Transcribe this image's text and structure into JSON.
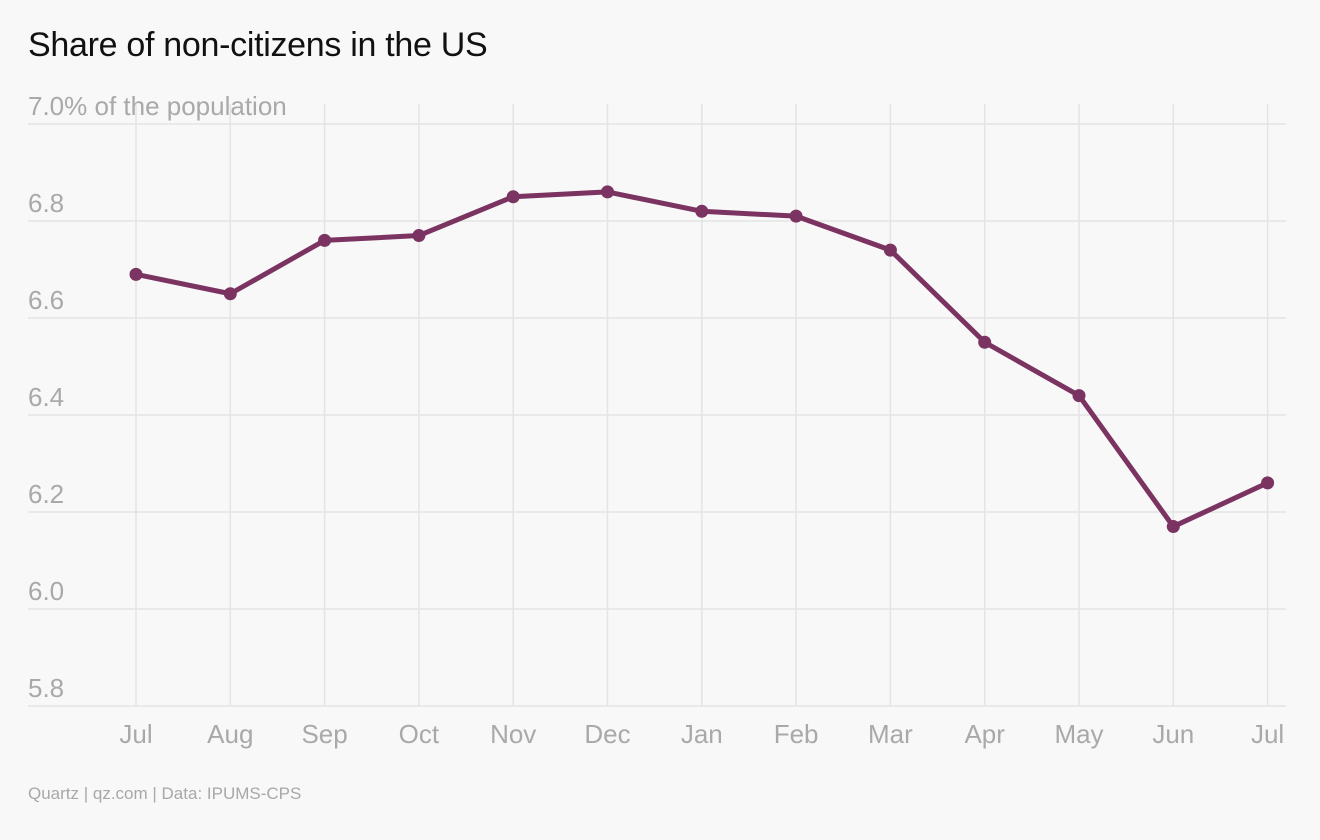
{
  "title": "Share of non-citizens in the US",
  "source": "Quartz | qz.com | Data: IPUMS-CPS",
  "colors": {
    "line": "#7b3361",
    "grid": "#e4e4e4",
    "tick": "#a9a9a9"
  },
  "chart_data": {
    "type": "line",
    "title": "Share of non-citizens in the US",
    "categories": [
      "Jul",
      "Aug",
      "Sep",
      "Oct",
      "Nov",
      "Dec",
      "Jan",
      "Feb",
      "Mar",
      "Apr",
      "May",
      "Jun",
      "Jul"
    ],
    "series": [
      {
        "values": [
          6.69,
          6.65,
          6.76,
          6.77,
          6.85,
          6.86,
          6.82,
          6.81,
          6.74,
          6.55,
          6.44,
          6.17,
          6.26
        ]
      }
    ],
    "y_ticks": [
      7.0,
      6.8,
      6.6,
      6.4,
      6.2,
      6.0,
      5.8
    ],
    "y_tick_labels": [
      "7.0% of the population",
      "6.8",
      "6.6",
      "6.4",
      "6.2",
      "6.0",
      "5.8"
    ],
    "ylim": [
      5.8,
      7.0
    ],
    "xlabel": "",
    "ylabel": "",
    "grid": true,
    "legend": "none"
  }
}
